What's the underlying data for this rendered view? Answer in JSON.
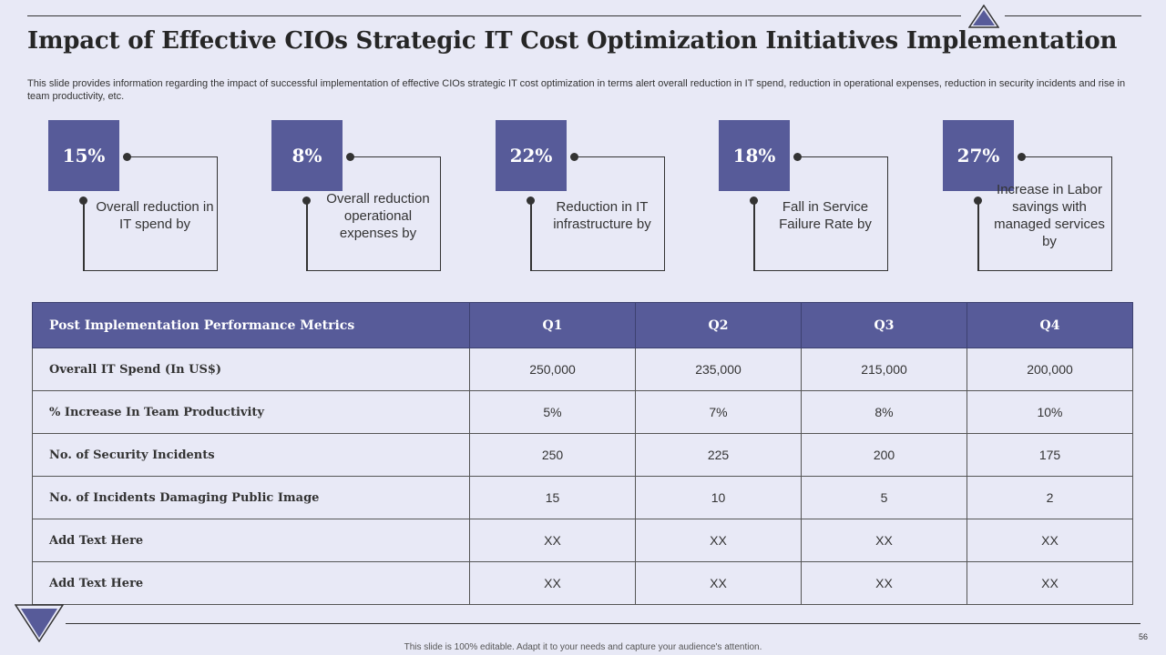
{
  "title": "Impact of Effective CIOs Strategic IT Cost Optimization Initiatives Implementation",
  "subtitle": "This slide provides information regarding the impact of successful implementation of effective CIOs strategic IT cost optimization in terms alert overall reduction in IT spend, reduction in operational expenses, reduction in security incidents and rise in team productivity, etc.",
  "stats": [
    {
      "value": "15%",
      "label": "Overall reduction in IT spend by"
    },
    {
      "value": "8%",
      "label": "Overall reduction operational expenses by"
    },
    {
      "value": "22%",
      "label": "Reduction in IT infrastructure by"
    },
    {
      "value": "18%",
      "label": "Fall in Service Failure Rate by"
    },
    {
      "value": "27%",
      "label": "Increase in Labor savings with managed services by"
    }
  ],
  "table": {
    "headers": [
      "Post Implementation Performance Metrics",
      "Q1",
      "Q2",
      "Q3",
      "Q4"
    ],
    "rows": [
      [
        "Overall IT Spend (In US$)",
        "250,000",
        "235,000",
        "215,000",
        "200,000"
      ],
      [
        "% Increase In Team Productivity",
        "5%",
        "7%",
        "8%",
        "10%"
      ],
      [
        "No. of Security Incidents",
        "250",
        "225",
        "200",
        "175"
      ],
      [
        "No. of Incidents Damaging Public Image",
        "15",
        "10",
        "5",
        "2"
      ],
      [
        "Add Text Here",
        "XX",
        "XX",
        "XX",
        "XX"
      ],
      [
        "Add Text Here",
        "XX",
        "XX",
        "XX",
        "XX"
      ]
    ]
  },
  "page_number": "56",
  "footer_note": "This slide is 100% editable. Adapt it to your needs and capture your audience's attention.",
  "colors": {
    "accent": "#575b99",
    "background": "#e8e9f6"
  }
}
